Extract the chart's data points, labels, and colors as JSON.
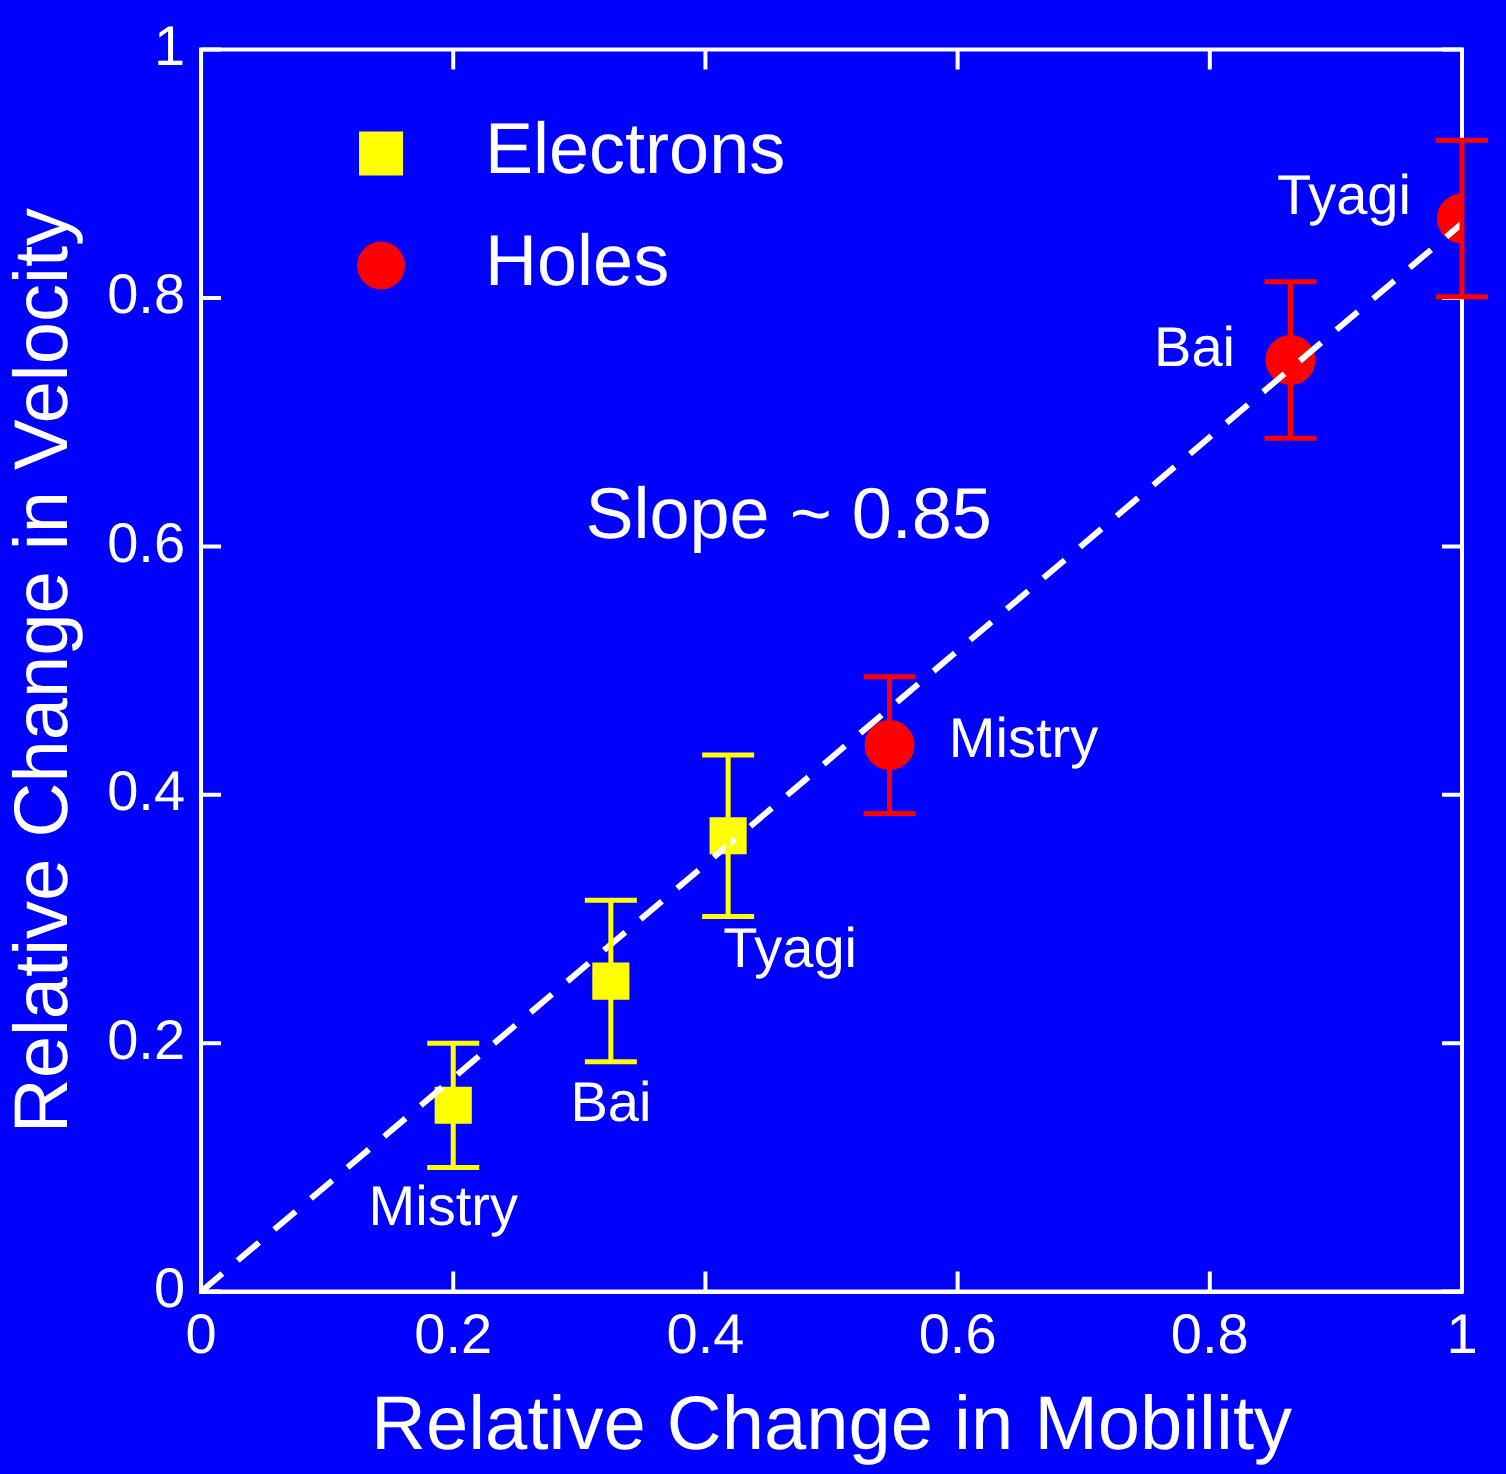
{
  "chart_data": {
    "type": "scatter",
    "xlabel": "Relative Change in Mobility",
    "ylabel": "Relative Change in Velocity",
    "xlim": [
      0,
      1
    ],
    "ylim": [
      0,
      1
    ],
    "xticks": [
      0,
      0.2,
      0.4,
      0.6,
      0.8,
      1
    ],
    "yticks": [
      0,
      0.2,
      0.4,
      0.6,
      0.8,
      1
    ],
    "legend": "top left",
    "grid": false,
    "series": [
      {
        "name": "Electrons",
        "color": "#ffff00",
        "marker": "square",
        "x": [
          0.2,
          0.325,
          0.418
        ],
        "values": [
          0.15,
          0.25,
          0.367
        ],
        "errors": [
          0.05,
          0.065,
          0.065
        ]
      },
      {
        "name": "Holes",
        "color": "#ff0000",
        "marker": "circle",
        "x": [
          0.546,
          0.864,
          1.0
        ],
        "values": [
          0.44,
          0.75,
          0.864
        ],
        "errors": [
          0.055,
          0.063,
          0.063
        ]
      },
      {
        "type": "line",
        "color": "#ffffff",
        "line_style": "dashed",
        "marker": "none",
        "x": [
          0,
          1
        ],
        "values": [
          0,
          0.86
        ]
      }
    ],
    "annotations": [
      {
        "text": "Mistry",
        "x": 0.2,
        "y": 0.15
      },
      {
        "text": "Bai",
        "x": 0.325,
        "y": 0.25
      },
      {
        "text": "Tyagi",
        "x": 0.418,
        "y": 0.367
      },
      {
        "text": "Mistry",
        "x": 0.546,
        "y": 0.44
      },
      {
        "text": "Bai",
        "x": 0.864,
        "y": 0.75
      },
      {
        "text": "Tyagi",
        "x": 1.0,
        "y": 0.864
      },
      "Slope ~ 0.85"
    ]
  }
}
